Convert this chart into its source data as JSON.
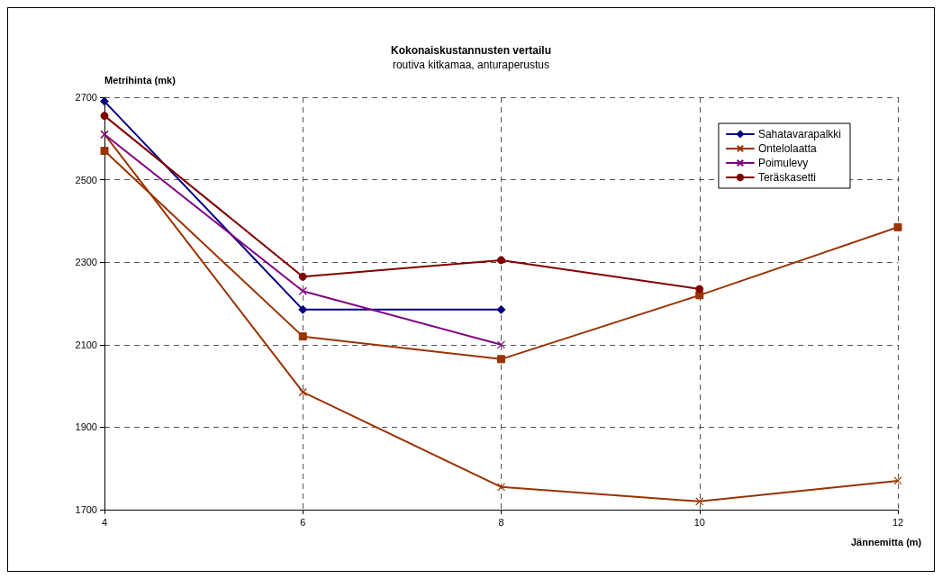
{
  "chart_data": {
    "type": "line",
    "title": "Kokonaiskustannusten vertailu",
    "subtitle": "routiva kitkamaa, anturaperustus",
    "xlabel": "Jännemitta (m)",
    "ylabel": "Metrihinta (mk)",
    "x": [
      4,
      6,
      8,
      10,
      12
    ],
    "xlim": [
      4,
      12
    ],
    "xticks": [
      4,
      6,
      8,
      10,
      12
    ],
    "ylim": [
      1700,
      2700
    ],
    "yticks": [
      1700,
      1900,
      2100,
      2300,
      2500,
      2700
    ],
    "grid": true,
    "legend": "top right",
    "line_style": "solid",
    "series": [
      {
        "name": "Sahatavarapalkki",
        "color": "#000080",
        "marker": "diamond",
        "values": [
          2690,
          2185,
          2185,
          null,
          null
        ]
      },
      {
        "color": "#993300",
        "marker": "square",
        "values": [
          2570,
          2120,
          2065,
          2220,
          2385
        ]
      },
      {
        "name": "Ontelolaatta",
        "color": "#993300",
        "marker": "cross",
        "values": [
          2610,
          1985,
          1755,
          1720,
          1770
        ]
      },
      {
        "name": "Poimulevy",
        "color": "#800080",
        "marker": "cross",
        "values": [
          2610,
          2230,
          2100,
          null,
          null
        ]
      },
      {
        "name": "Teräskasetti",
        "color": "#800000",
        "marker": "circle",
        "values": [
          2655,
          2265,
          2305,
          2235,
          null
        ]
      }
    ]
  }
}
